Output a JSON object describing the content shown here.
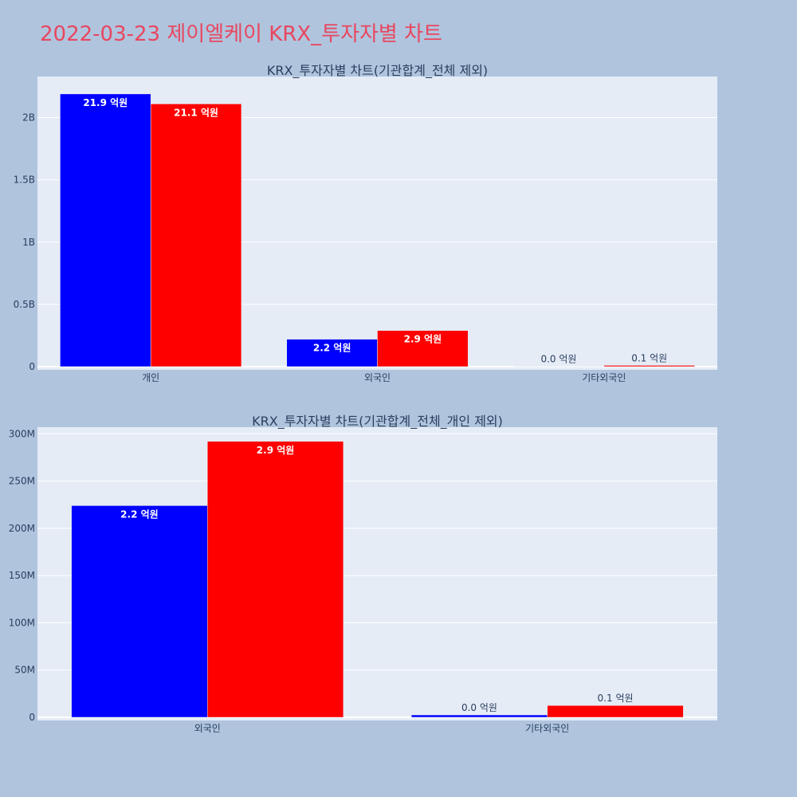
{
  "page": {
    "title": "2022-03-23 제이엘케이 KRX_투자자별 차트"
  },
  "colors": {
    "background": "#b0c4de",
    "plot_bg": "#e5ecf6",
    "buy": "#0000ff",
    "sell": "#ff0000",
    "title": "#e8475f"
  },
  "chart_data": [
    {
      "type": "bar",
      "title": "KRX_투자자별 차트(기관합계_전체 제외)",
      "categories": [
        "개인",
        "외국인",
        "기타외국인"
      ],
      "series": [
        {
          "color": "#0000ff",
          "values": [
            2190000000,
            220000000,
            0
          ],
          "labels": [
            "21.9 억원",
            "2.2 억원",
            "0.0 억원"
          ]
        },
        {
          "color": "#ff0000",
          "values": [
            2110000000,
            290000000,
            10000000
          ],
          "labels": [
            "21.1 억원",
            "2.9 억원",
            "0.1 억원"
          ]
        }
      ],
      "ylim": [
        0,
        2330000000
      ],
      "yticks": [
        0,
        500000000,
        1000000000,
        1500000000,
        2000000000
      ],
      "ytick_labels": [
        "0",
        "0.5B",
        "1B",
        "1.5B",
        "2B"
      ],
      "grid": true,
      "xlabel": "",
      "ylabel": ""
    },
    {
      "type": "bar",
      "title": "KRX_투자자별 차트(기관합계_전체_개인 제외)",
      "categories": [
        "외국인",
        "기타외국인"
      ],
      "series": [
        {
          "color": "#0000ff",
          "values": [
            224000000,
            2500000
          ],
          "labels": [
            "2.2 억원",
            "0.0 억원"
          ]
        },
        {
          "color": "#ff0000",
          "values": [
            292000000,
            12500000
          ],
          "labels": [
            "2.9 억원",
            "0.1 억원"
          ]
        }
      ],
      "ylim": [
        0,
        307000000
      ],
      "yticks": [
        0,
        50000000,
        100000000,
        150000000,
        200000000,
        250000000,
        300000000
      ],
      "ytick_labels": [
        "0",
        "50M",
        "100M",
        "150M",
        "200M",
        "250M",
        "300M"
      ],
      "grid": true,
      "xlabel": "",
      "ylabel": ""
    }
  ]
}
